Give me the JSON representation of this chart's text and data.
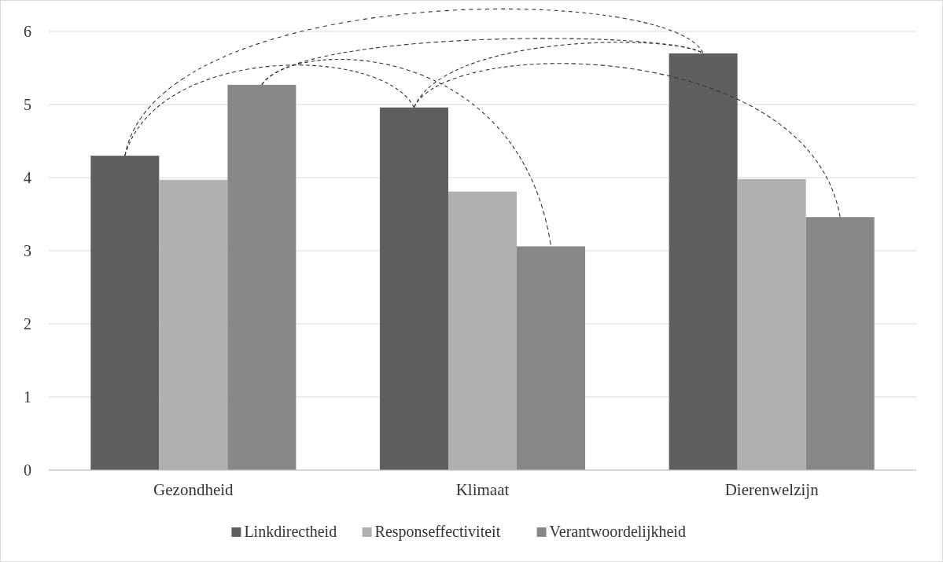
{
  "chart_data": {
    "type": "bar",
    "categories": [
      "Gezondheid",
      "Klimaat",
      "Dierenwelzijn"
    ],
    "series": [
      {
        "name": "Linkdirectheid",
        "color": "#5f5f5f",
        "values": [
          4.3,
          4.96,
          5.7
        ]
      },
      {
        "name": "Responseffectiviteit",
        "color": "#b0b0b0",
        "values": [
          3.97,
          3.81,
          3.98
        ]
      },
      {
        "name": "Verantwoordelijkheid",
        "color": "#878787",
        "values": [
          5.27,
          3.06,
          3.46
        ]
      }
    ],
    "ylim": [
      0,
      6
    ],
    "yticks": [
      0,
      1,
      2,
      3,
      4,
      5,
      6
    ],
    "grid": "y",
    "legend": "bottom"
  }
}
